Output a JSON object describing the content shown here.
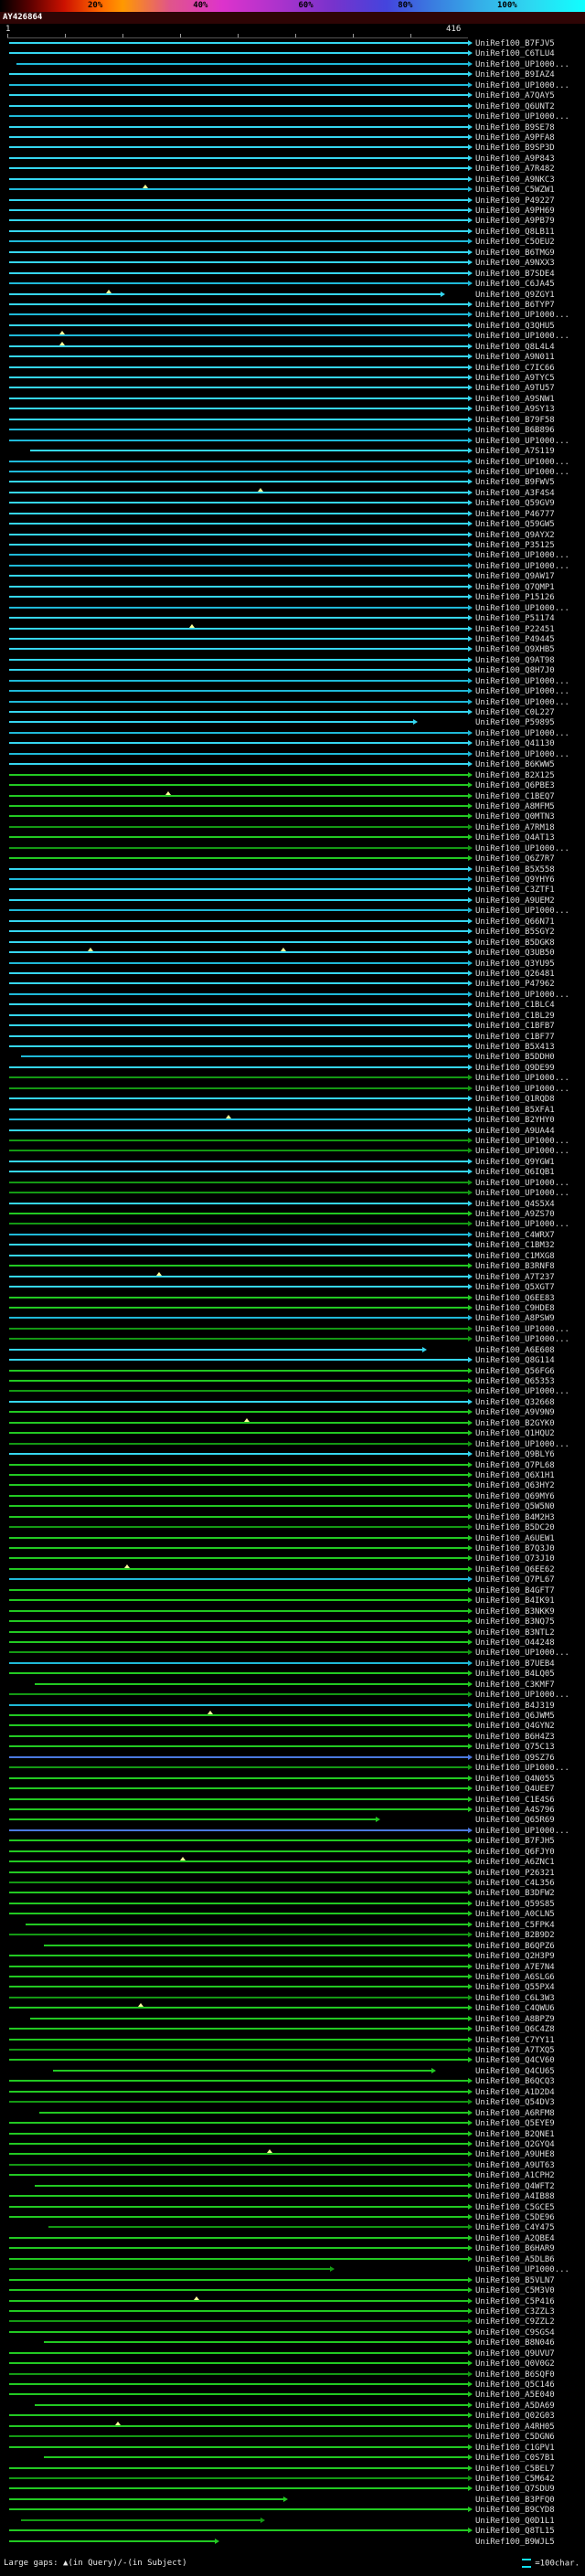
{
  "header": {
    "query_id": "AY426864"
  },
  "ruler": {
    "start": "1",
    "end": "416"
  },
  "legend": {
    "left": "Large gaps: ▲(in Query)/-(in Subject)",
    "unit_symbol": "=",
    "unit_text": "=100char."
  },
  "palette": {
    "c1": "#35d6f0",
    "c2": "#1fb9d8",
    "b": "#4b79e0",
    "g1": "#22c922",
    "g2": "#149914"
  },
  "chart_data": {
    "type": "bar",
    "orientation": "horizontal",
    "title": "AY426864",
    "x_axis": {
      "start": 1,
      "end": 416,
      "unit": "residues"
    },
    "identity_scale_labels": [
      "20%",
      "40%",
      "60%",
      "80%",
      "100%"
    ],
    "legend_note": "Large gaps: ▲(in Query)/-(in Subject)",
    "bar_unit": "=100char.",
    "rows": [
      {
        "l": "UniRef100_B7FJV5",
        "c": "c1"
      },
      {
        "l": "UniRef100_C6TLU4",
        "c": "c1"
      },
      {
        "l": "UniRef100_UP1000...",
        "c": "c2",
        "s": 2
      },
      {
        "l": "UniRef100_B9IAZ4",
        "c": "c1"
      },
      {
        "l": "UniRef100_UP1000...",
        "c": "c2"
      },
      {
        "l": "UniRef100_A7QAY5",
        "c": "c1"
      },
      {
        "l": "UniRef100_Q6UNT2",
        "c": "c1"
      },
      {
        "l": "UniRef100_UP1000...",
        "c": "c2"
      },
      {
        "l": "UniRef100_B9SE78",
        "c": "c1"
      },
      {
        "l": "UniRef100_A9PFA8",
        "c": "c1"
      },
      {
        "l": "UniRef100_B9SP3D",
        "c": "c1"
      },
      {
        "l": "UniRef100_A9P843",
        "c": "c1"
      },
      {
        "l": "UniRef100_A7R482",
        "c": "c1"
      },
      {
        "l": "UniRef100_A9NKC3",
        "c": "c1"
      },
      {
        "l": "UniRef100_C5WZW1",
        "c": "c2",
        "g": [
          30
        ]
      },
      {
        "l": "UniRef100_P49227",
        "c": "c1"
      },
      {
        "l": "UniRef100_A9PH69",
        "c": "c1"
      },
      {
        "l": "UniRef100_A9PB79",
        "c": "c1"
      },
      {
        "l": "UniRef100_Q8LB11",
        "c": "c1"
      },
      {
        "l": "UniRef100_C5OEU2",
        "c": "c2"
      },
      {
        "l": "UniRef100_B6TMG9",
        "c": "c1"
      },
      {
        "l": "UniRef100_A9NXX3",
        "c": "c1"
      },
      {
        "l": "UniRef100_B7SDE4",
        "c": "c1"
      },
      {
        "l": "UniRef100_C6JA45",
        "c": "c2"
      },
      {
        "l": "UniRef100_Q9ZGY1",
        "c": "c1",
        "e": 94,
        "g": [
          22
        ]
      },
      {
        "l": "UniRef100_B6TYP7",
        "c": "c1"
      },
      {
        "l": "UniRef100_UP1000...",
        "c": "c2"
      },
      {
        "l": "UniRef100_Q3QHU5",
        "c": "c1"
      },
      {
        "l": "UniRef100_UP1000...",
        "c": "c2",
        "g": [
          12
        ]
      },
      {
        "l": "UniRef100_Q8L4L4",
        "c": "c1",
        "g": [
          12
        ]
      },
      {
        "l": "UniRef100_A9N011",
        "c": "c1"
      },
      {
        "l": "UniRef100_C7IC66",
        "c": "c1"
      },
      {
        "l": "UniRef100_A9TYC5",
        "c": "c1"
      },
      {
        "l": "UniRef100_A9TU57",
        "c": "c1"
      },
      {
        "l": "UniRef100_A9SNW1",
        "c": "c1"
      },
      {
        "l": "UniRef100_A9SY13",
        "c": "c1"
      },
      {
        "l": "UniRef100_B79F58",
        "c": "c1"
      },
      {
        "l": "UniRef100_B6B896",
        "c": "c2"
      },
      {
        "l": "UniRef100_UP1000...",
        "c": "c2"
      },
      {
        "l": "UniRef100_A7S119",
        "c": "c1",
        "s": 5
      },
      {
        "l": "UniRef100_UP1000...",
        "c": "c2"
      },
      {
        "l": "UniRef100_UP1000...",
        "c": "c2"
      },
      {
        "l": "UniRef100_B9FWV5",
        "c": "c1"
      },
      {
        "l": "UniRef100_A3F4S4",
        "c": "c1",
        "g": [
          55
        ]
      },
      {
        "l": "UniRef100_Q59GV9",
        "c": "c1"
      },
      {
        "l": "UniRef100_P46777",
        "c": "c1"
      },
      {
        "l": "UniRef100_Q59GW5",
        "c": "c1"
      },
      {
        "l": "UniRef100_Q9AYX2",
        "c": "c1"
      },
      {
        "l": "UniRef100_P35125",
        "c": "c1"
      },
      {
        "l": "UniRef100_UP1000...",
        "c": "c2"
      },
      {
        "l": "UniRef100_UP1000...",
        "c": "c2"
      },
      {
        "l": "UniRef100_Q9AW17",
        "c": "c1"
      },
      {
        "l": "UniRef100_Q7QMP1",
        "c": "c1"
      },
      {
        "l": "UniRef100_P15126",
        "c": "c1"
      },
      {
        "l": "UniRef100_UP1000...",
        "c": "c2"
      },
      {
        "l": "UniRef100_P51174",
        "c": "c1"
      },
      {
        "l": "UniRef100_P22451",
        "c": "c1",
        "g": [
          40
        ]
      },
      {
        "l": "UniRef100_P49445",
        "c": "c1"
      },
      {
        "l": "UniRef100_Q9XHB5",
        "c": "c1"
      },
      {
        "l": "UniRef100_Q9AT98",
        "c": "c1"
      },
      {
        "l": "UniRef100_Q8H7J0",
        "c": "c1"
      },
      {
        "l": "UniRef100_UP1000...",
        "c": "c2"
      },
      {
        "l": "UniRef100_UP1000...",
        "c": "c2"
      },
      {
        "l": "UniRef100_UP1000...",
        "c": "c2"
      },
      {
        "l": "UniRef100_C0L227",
        "c": "c1"
      },
      {
        "l": "UniRef100_P59895",
        "c": "c1",
        "e": 88
      },
      {
        "l": "UniRef100_UP1000...",
        "c": "c2"
      },
      {
        "l": "UniRef100_Q41130",
        "c": "c1"
      },
      {
        "l": "UniRef100_UP1000...",
        "c": "c2"
      },
      {
        "l": "UniRef100_B6KWW5",
        "c": "c1"
      },
      {
        "l": "UniRef100_B2X125",
        "c": "g1"
      },
      {
        "l": "UniRef100_Q6PBE3",
        "c": "g1"
      },
      {
        "l": "UniRef100_C1BEQ7",
        "c": "g1",
        "g": [
          35
        ]
      },
      {
        "l": "UniRef100_A8MFM5",
        "c": "g1"
      },
      {
        "l": "UniRef100_Q0MTN3",
        "c": "g1"
      },
      {
        "l": "UniRef100_A7RM18",
        "c": "g2"
      },
      {
        "l": "UniRef100_Q4AT13",
        "c": "g1"
      },
      {
        "l": "UniRef100_UP1000...",
        "c": "g2"
      },
      {
        "l": "UniRef100_Q6Z7R7",
        "c": "g1"
      },
      {
        "l": "UniRef100_B5X558",
        "c": "c1"
      },
      {
        "l": "UniRef100_Q9YHY6",
        "c": "c2"
      },
      {
        "l": "UniRef100_C3ZTF1",
        "c": "c1"
      },
      {
        "l": "UniRef100_A9UEM2",
        "c": "c1"
      },
      {
        "l": "UniRef100_UP1000...",
        "c": "c2"
      },
      {
        "l": "UniRef100_Q66N71",
        "c": "c1"
      },
      {
        "l": "UniRef100_B5SGY2",
        "c": "c1"
      },
      {
        "l": "UniRef100_B5DGK8",
        "c": "c1"
      },
      {
        "l": "UniRef100_Q3UB50",
        "c": "c1",
        "g": [
          18,
          60
        ]
      },
      {
        "l": "UniRef100_Q3YU95",
        "c": "c2"
      },
      {
        "l": "UniRef100_Q26481",
        "c": "c1"
      },
      {
        "l": "UniRef100_P47962",
        "c": "c1"
      },
      {
        "l": "UniRef100_UP1000...",
        "c": "c2"
      },
      {
        "l": "UniRef100_C1BLC4",
        "c": "c1"
      },
      {
        "l": "UniRef100_C1BL29",
        "c": "c1"
      },
      {
        "l": "UniRef100_C1BFB7",
        "c": "c1"
      },
      {
        "l": "UniRef100_C1BF77",
        "c": "c1"
      },
      {
        "l": "UniRef100_B5X413",
        "c": "c1"
      },
      {
        "l": "UniRef100_B5DDH0",
        "c": "c2",
        "s": 3
      },
      {
        "l": "UniRef100_Q9DE99",
        "c": "c1"
      },
      {
        "l": "UniRef100_UP1000...",
        "c": "g2"
      },
      {
        "l": "UniRef100_UP1000...",
        "c": "g2"
      },
      {
        "l": "UniRef100_Q1RQD8",
        "c": "c1"
      },
      {
        "l": "UniRef100_B5XFA1",
        "c": "c1"
      },
      {
        "l": "UniRef100_B2YHY0",
        "c": "c2",
        "g": [
          48
        ]
      },
      {
        "l": "UniRef100_A9UA44",
        "c": "c1"
      },
      {
        "l": "UniRef100_UP1000...",
        "c": "g2"
      },
      {
        "l": "UniRef100_UP1000...",
        "c": "g2"
      },
      {
        "l": "UniRef100_Q9YGW1",
        "c": "c1"
      },
      {
        "l": "UniRef100_Q6IQB1",
        "c": "c1"
      },
      {
        "l": "UniRef100_UP1000...",
        "c": "g2"
      },
      {
        "l": "UniRef100_UP1000...",
        "c": "g2"
      },
      {
        "l": "UniRef100_Q4S5X4",
        "c": "c1"
      },
      {
        "l": "UniRef100_A9ZS70",
        "c": "g1"
      },
      {
        "l": "UniRef100_UP1000...",
        "c": "g2"
      },
      {
        "l": "UniRef100_C4WRX7",
        "c": "c2"
      },
      {
        "l": "UniRef100_C1BM32",
        "c": "c1"
      },
      {
        "l": "UniRef100_C1MXG8",
        "c": "c1"
      },
      {
        "l": "UniRef100_B3RNF8",
        "c": "g1"
      },
      {
        "l": "UniRef100_A7T237",
        "c": "c1",
        "g": [
          33
        ]
      },
      {
        "l": "UniRef100_Q5XGT7",
        "c": "c1"
      },
      {
        "l": "UniRef100_Q6EE83",
        "c": "g1"
      },
      {
        "l": "UniRef100_C9HDE8",
        "c": "g1"
      },
      {
        "l": "UniRef100_A8PSW9",
        "c": "c2"
      },
      {
        "l": "UniRef100_UP1000...",
        "c": "g2"
      },
      {
        "l": "UniRef100_UP1000...",
        "c": "g2"
      },
      {
        "l": "UniRef100_A6E608",
        "c": "c1",
        "e": 90
      },
      {
        "l": "UniRef100_Q8G114",
        "c": "c1"
      },
      {
        "l": "UniRef100_Q56FG6",
        "c": "g1"
      },
      {
        "l": "UniRef100_Q65353",
        "c": "g1"
      },
      {
        "l": "UniRef100_UP1000...",
        "c": "g2"
      },
      {
        "l": "UniRef100_Q32668",
        "c": "c1"
      },
      {
        "l": "UniRef100_A9V9N9",
        "c": "g1"
      },
      {
        "l": "UniRef100_B2GYK0",
        "c": "g1",
        "g": [
          52
        ]
      },
      {
        "l": "UniRef100_Q1HQU2",
        "c": "g1"
      },
      {
        "l": "UniRef100_UP1000...",
        "c": "g2"
      },
      {
        "l": "UniRef100_Q9BLY6",
        "c": "c1"
      },
      {
        "l": "UniRef100_Q7PL68",
        "c": "g1"
      },
      {
        "l": "UniRef100_Q6X1H1",
        "c": "g1"
      },
      {
        "l": "UniRef100_Q63HY2",
        "c": "g1"
      },
      {
        "l": "UniRef100_Q69MY6",
        "c": "g1"
      },
      {
        "l": "UniRef100_Q5W5N0",
        "c": "g1"
      },
      {
        "l": "UniRef100_B4M2H3",
        "c": "g1"
      },
      {
        "l": "UniRef100_B5DC20",
        "c": "g2"
      },
      {
        "l": "UniRef100_A6UEW1",
        "c": "g1"
      },
      {
        "l": "UniRef100_B7Q3J0",
        "c": "g1"
      },
      {
        "l": "UniRef100_Q73J10",
        "c": "g1"
      },
      {
        "l": "UniRef100_Q6EE62",
        "c": "g1",
        "g": [
          26
        ]
      },
      {
        "l": "UniRef100_Q7PL67",
        "c": "c2"
      },
      {
        "l": "UniRef100_B4GFT7",
        "c": "g1"
      },
      {
        "l": "UniRef100_B4IK91",
        "c": "g1"
      },
      {
        "l": "UniRef100_B3NKK9",
        "c": "g1"
      },
      {
        "l": "UniRef100_B3NQ75",
        "c": "g1"
      },
      {
        "l": "UniRef100_B3NTL2",
        "c": "g1"
      },
      {
        "l": "UniRef100_O44248",
        "c": "g1"
      },
      {
        "l": "UniRef100_UP1000...",
        "c": "g2"
      },
      {
        "l": "UniRef100_B7UEB4",
        "c": "c2"
      },
      {
        "l": "UniRef100_B4LQ05",
        "c": "g1"
      },
      {
        "l": "UniRef100_C3KMF7",
        "c": "g1",
        "s": 6
      },
      {
        "l": "UniRef100_UP1000...",
        "c": "g2"
      },
      {
        "l": "UniRef100_B4J319",
        "c": "c2"
      },
      {
        "l": "UniRef100_Q6JWM5",
        "c": "g1",
        "g": [
          44
        ]
      },
      {
        "l": "UniRef100_Q4GYN2",
        "c": "g1"
      },
      {
        "l": "UniRef100_B6H4Z3",
        "c": "g1"
      },
      {
        "l": "UniRef100_Q75C13",
        "c": "g1"
      },
      {
        "l": "UniRef100_Q9SZ76",
        "c": "b"
      },
      {
        "l": "UniRef100_UP1000...",
        "c": "g2"
      },
      {
        "l": "UniRef100_Q4N055",
        "c": "g1"
      },
      {
        "l": "UniRef100_Q4UEE7",
        "c": "g1"
      },
      {
        "l": "UniRef100_C1E4S6",
        "c": "g1"
      },
      {
        "l": "UniRef100_A4S796",
        "c": "g1"
      },
      {
        "l": "UniRef100_Q65R69",
        "c": "g1",
        "e": 80
      },
      {
        "l": "UniRef100_UP1000...",
        "c": "b"
      },
      {
        "l": "UniRef100_B7FJH5",
        "c": "g1"
      },
      {
        "l": "UniRef100_Q6FJY0",
        "c": "g1"
      },
      {
        "l": "UniRef100_A6ZNC1",
        "c": "g1",
        "g": [
          38
        ]
      },
      {
        "l": "UniRef100_P26321",
        "c": "g1"
      },
      {
        "l": "UniRef100_C4L356",
        "c": "g2"
      },
      {
        "l": "UniRef100_B3DFW2",
        "c": "g1"
      },
      {
        "l": "UniRef100_Q59S85",
        "c": "g1"
      },
      {
        "l": "UniRef100_A0CLN5",
        "c": "g1"
      },
      {
        "l": "UniRef100_C5FPK4",
        "c": "g1",
        "s": 4
      },
      {
        "l": "UniRef100_B2B9D2",
        "c": "g2"
      },
      {
        "l": "UniRef100_B6QPZ6",
        "c": "g1",
        "s": 8
      },
      {
        "l": "UniRef100_Q2H3P9",
        "c": "g1"
      },
      {
        "l": "UniRef100_A7E7N4",
        "c": "g1"
      },
      {
        "l": "UniRef100_A6SLG6",
        "c": "g1"
      },
      {
        "l": "UniRef100_Q55PX4",
        "c": "g1"
      },
      {
        "l": "UniRef100_C6L3W3",
        "c": "g2"
      },
      {
        "l": "UniRef100_C4QWU6",
        "c": "g1",
        "g": [
          29
        ]
      },
      {
        "l": "UniRef100_A8BPZ9",
        "c": "g1",
        "s": 5
      },
      {
        "l": "UniRef100_Q6C4Z8",
        "c": "g1"
      },
      {
        "l": "UniRef100_C7YY11",
        "c": "g1"
      },
      {
        "l": "UniRef100_A7TXQ5",
        "c": "g2"
      },
      {
        "l": "UniRef100_Q4CV60",
        "c": "g1"
      },
      {
        "l": "UniRef100_Q4CU65",
        "c": "g1",
        "s": 10,
        "e": 92
      },
      {
        "l": "UniRef100_B6QCQ3",
        "c": "g1"
      },
      {
        "l": "UniRef100_A1D2D4",
        "c": "g1"
      },
      {
        "l": "UniRef100_Q54DV3",
        "c": "g2"
      },
      {
        "l": "UniRef100_A6RFM8",
        "c": "g1",
        "s": 7
      },
      {
        "l": "UniRef100_Q5EYE9",
        "c": "g1"
      },
      {
        "l": "UniRef100_B2QNE1",
        "c": "g1"
      },
      {
        "l": "UniRef100_Q2GYQ4",
        "c": "g1"
      },
      {
        "l": "UniRef100_A9UHE8",
        "c": "g1",
        "g": [
          57
        ]
      },
      {
        "l": "UniRef100_A9UT63",
        "c": "g2"
      },
      {
        "l": "UniRef100_A1CPH2",
        "c": "g1"
      },
      {
        "l": "UniRef100_Q4WFT2",
        "c": "g1",
        "s": 6
      },
      {
        "l": "UniRef100_A4IB88",
        "c": "g1"
      },
      {
        "l": "UniRef100_C5GCE5",
        "c": "g1"
      },
      {
        "l": "UniRef100_C5DE96",
        "c": "g1"
      },
      {
        "l": "UniRef100_C4Y475",
        "c": "g2",
        "s": 9
      },
      {
        "l": "UniRef100_A2QBE4",
        "c": "g1"
      },
      {
        "l": "UniRef100_B6HAR9",
        "c": "g1"
      },
      {
        "l": "UniRef100_A5DLB6",
        "c": "g1"
      },
      {
        "l": "UniRef100_UP1000...",
        "c": "g2",
        "e": 70
      },
      {
        "l": "UniRef100_B5VLN7",
        "c": "g1"
      },
      {
        "l": "UniRef100_C5M3V0",
        "c": "g1"
      },
      {
        "l": "UniRef100_C5P416",
        "c": "g1",
        "g": [
          41
        ]
      },
      {
        "l": "UniRef100_C3ZZL3",
        "c": "g1"
      },
      {
        "l": "UniRef100_C9ZZL2",
        "c": "g2"
      },
      {
        "l": "UniRef100_C9SGS4",
        "c": "g1"
      },
      {
        "l": "UniRef100_B8N046",
        "c": "g1",
        "s": 8
      },
      {
        "l": "UniRef100_Q9UVU7",
        "c": "g1"
      },
      {
        "l": "UniRef100_Q0V0G2",
        "c": "g1"
      },
      {
        "l": "UniRef100_B6SQF0",
        "c": "g2"
      },
      {
        "l": "UniRef100_Q5C146",
        "c": "g1"
      },
      {
        "l": "UniRef100_A5E040",
        "c": "g1"
      },
      {
        "l": "UniRef100_A5DA69",
        "c": "g1",
        "s": 6
      },
      {
        "l": "UniRef100_Q02G03",
        "c": "g1"
      },
      {
        "l": "UniRef100_A4RH05",
        "c": "g1",
        "g": [
          24
        ]
      },
      {
        "l": "UniRef100_C5DGN6",
        "c": "g2"
      },
      {
        "l": "UniRef100_C1GPV1",
        "c": "g1"
      },
      {
        "l": "UniRef100_C0S7B1",
        "c": "g1",
        "s": 8
      },
      {
        "l": "UniRef100_C5BEL7",
        "c": "g1"
      },
      {
        "l": "UniRef100_C5M642",
        "c": "g2"
      },
      {
        "l": "UniRef100_Q7SDU9",
        "c": "g1"
      },
      {
        "l": "UniRef100_B3PFQ0",
        "c": "g1",
        "e": 60
      },
      {
        "l": "UniRef100_B9CYD8",
        "c": "g1"
      },
      {
        "l": "UniRef100_Q0D1L1",
        "c": "g2",
        "s": 3,
        "e": 55
      },
      {
        "l": "UniRef100_Q8TL15",
        "c": "g1"
      },
      {
        "l": "UniRef100_B9WJL5",
        "c": "g1",
        "e": 45
      }
    ]
  }
}
